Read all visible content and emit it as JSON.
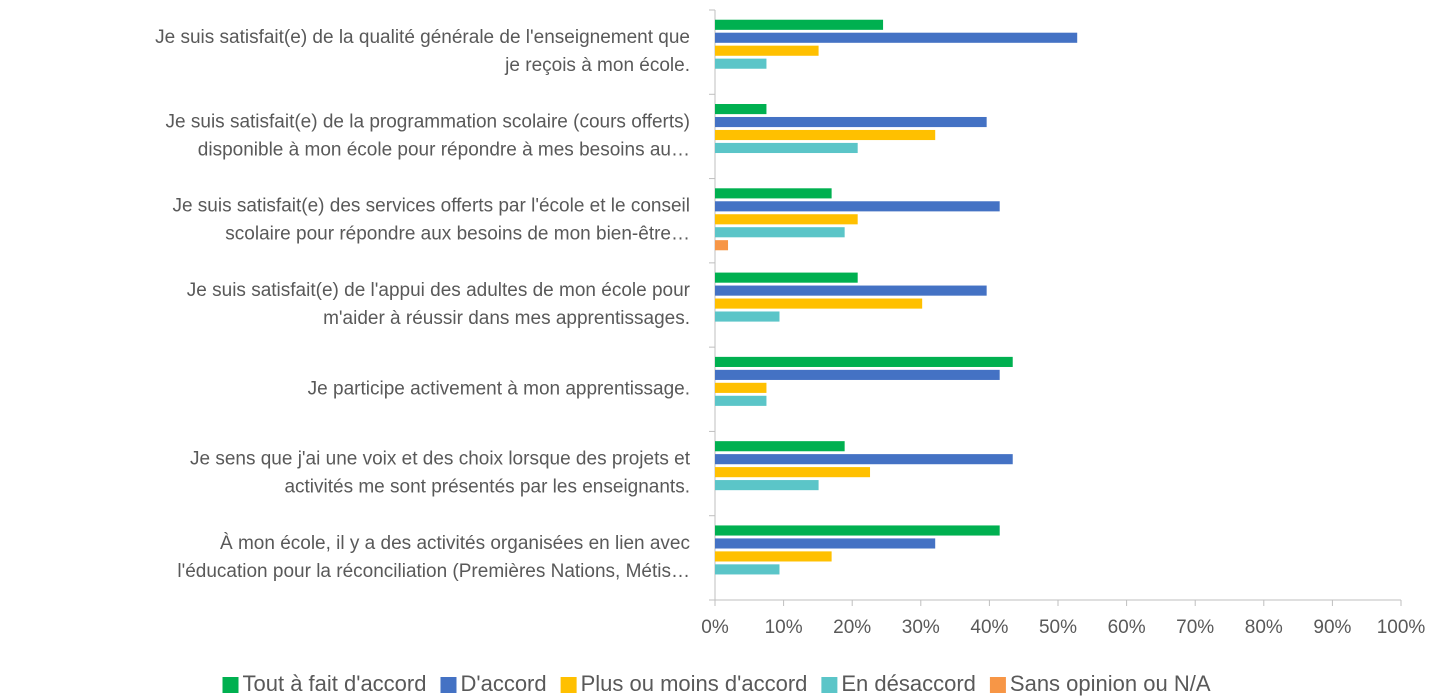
{
  "chart_data": {
    "type": "bar",
    "orientation": "horizontal",
    "categories": [
      "Je suis satisfait(e) de la qualité générale de l'enseignement que\nje reçois à mon école.",
      "Je suis satisfait(e) de la programmation scolaire (cours offerts)\ndisponible à mon école pour répondre à mes besoins au…",
      "Je suis satisfait(e) des services offerts par l'école et le conseil\nscolaire pour répondre aux besoins de mon bien-être…",
      "Je suis satisfait(e) de l'appui des adultes de mon école pour\nm'aider à réussir dans mes apprentissages.",
      "Je participe activement à mon apprentissage.",
      "Je sens que j'ai une voix et des choix lorsque des projets et\nactivités me sont présentés par les enseignants.",
      "À mon école, il y a des activités organisées en lien avec\nl'éducation pour la réconciliation (Premières Nations, Métis…"
    ],
    "series": [
      {
        "name": "Tout à fait d'accord",
        "color": "#00b050",
        "values": [
          24.5,
          7.5,
          17.0,
          20.8,
          43.4,
          18.9,
          41.5
        ]
      },
      {
        "name": "D'accord",
        "color": "#4472c4",
        "values": [
          52.8,
          39.6,
          41.5,
          39.6,
          41.5,
          43.4,
          32.1
        ]
      },
      {
        "name": "Plus ou moins d'accord",
        "color": "#ffc000",
        "values": [
          15.1,
          32.1,
          20.8,
          30.2,
          7.5,
          22.6,
          17.0
        ]
      },
      {
        "name": "En désaccord",
        "color": "#5bc5c8",
        "values": [
          7.5,
          20.8,
          18.9,
          9.4,
          7.5,
          15.1,
          9.4
        ]
      },
      {
        "name": "Sans opinion ou N/A",
        "color": "#f79646",
        "values": [
          0,
          0,
          1.9,
          0,
          0,
          0,
          0
        ]
      }
    ],
    "xlim": [
      0,
      100
    ],
    "xticks": [
      {
        "value": 0,
        "label": "0%"
      },
      {
        "value": 10,
        "label": "10%"
      },
      {
        "value": 20,
        "label": "20%"
      },
      {
        "value": 30,
        "label": "30%"
      },
      {
        "value": 40,
        "label": "40%"
      },
      {
        "value": 50,
        "label": "50%"
      },
      {
        "value": 60,
        "label": "60%"
      },
      {
        "value": 70,
        "label": "70%"
      },
      {
        "value": 80,
        "label": "80%"
      },
      {
        "value": 90,
        "label": "90%"
      },
      {
        "value": 100,
        "label": "100%"
      }
    ],
    "legend": "bottom",
    "grid": false
  }
}
